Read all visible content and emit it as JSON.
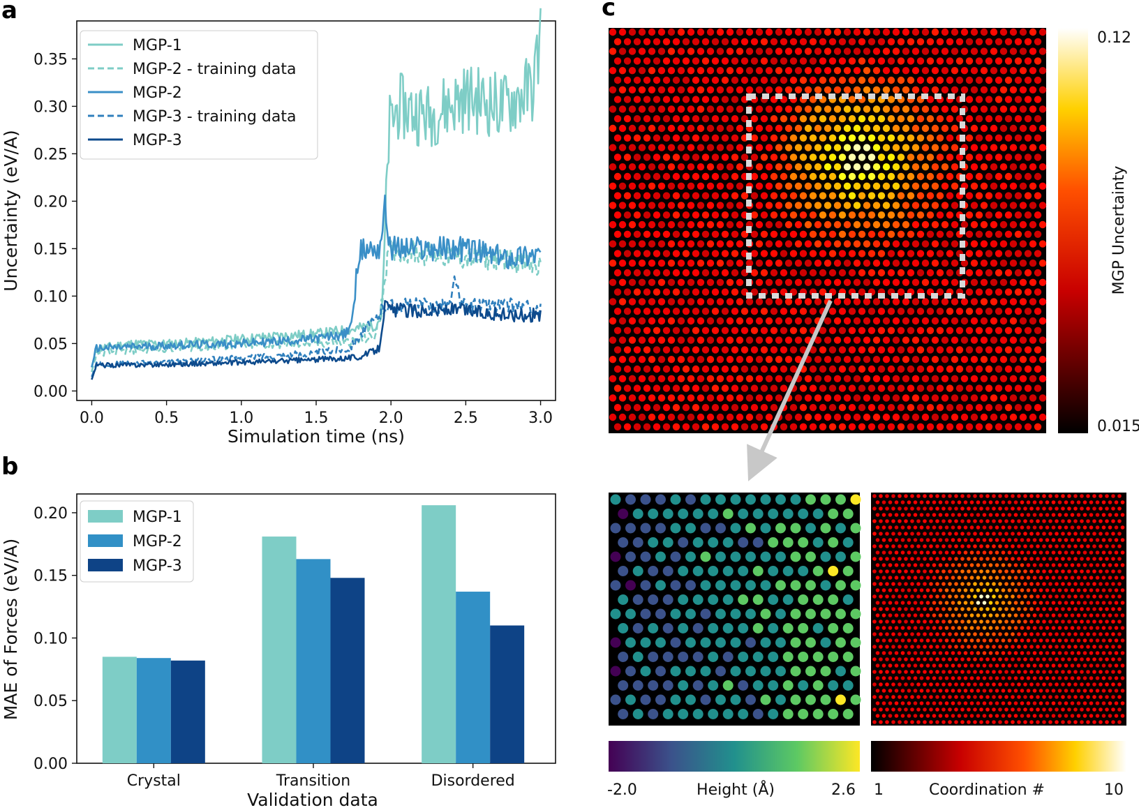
{
  "panels": {
    "a": "a",
    "b": "b",
    "c": "c"
  },
  "chart_data": [
    {
      "type": "line",
      "panel": "a",
      "title": "",
      "xlabel": "Simulation time (ns)",
      "ylabel": "Uncertainty (eV/A)",
      "xlim": [
        -0.1,
        3.1
      ],
      "ylim": [
        -0.01,
        0.39
      ],
      "xticks": [
        0.0,
        0.5,
        1.0,
        1.5,
        2.0,
        2.5,
        3.0
      ],
      "xtick_labels": [
        "0.0",
        "0.5",
        "1.0",
        "1.5",
        "2.0",
        "2.5",
        "3.0"
      ],
      "yticks": [
        0.0,
        0.05,
        0.1,
        0.15,
        0.2,
        0.25,
        0.3,
        0.35
      ],
      "ytick_labels": [
        "0.00",
        "0.05",
        "0.10",
        "0.15",
        "0.20",
        "0.25",
        "0.30",
        "0.35"
      ],
      "legend_position": "top-left",
      "series": [
        {
          "name": "MGP-1",
          "color": "#7ecdc6",
          "dash": "solid",
          "x": [
            0.0,
            0.03,
            0.25,
            0.5,
            0.75,
            1.0,
            1.25,
            1.5,
            1.75,
            1.9,
            1.94,
            1.97,
            1.99,
            2.05,
            2.25,
            2.5,
            2.75,
            2.95,
            3.0
          ],
          "y": [
            0.025,
            0.045,
            0.05,
            0.05,
            0.052,
            0.055,
            0.058,
            0.06,
            0.065,
            0.07,
            0.08,
            0.21,
            0.28,
            0.3,
            0.29,
            0.31,
            0.3,
            0.32,
            0.375
          ]
        },
        {
          "name": "MGP-2 - training data",
          "color": "#7ecdc6",
          "dash": "dashed",
          "x": [
            0.0,
            0.03,
            0.5,
            1.0,
            1.5,
            1.75,
            1.9,
            1.94,
            1.98,
            2.02,
            2.25,
            2.5,
            2.75,
            3.0
          ],
          "y": [
            0.02,
            0.04,
            0.045,
            0.048,
            0.05,
            0.052,
            0.058,
            0.1,
            0.14,
            0.15,
            0.145,
            0.14,
            0.14,
            0.13
          ]
        },
        {
          "name": "MGP-2",
          "color": "#3a8fc7",
          "dash": "solid",
          "x": [
            0.0,
            0.03,
            0.5,
            1.0,
            1.5,
            1.7,
            1.75,
            1.78,
            1.85,
            1.92,
            1.96,
            2.0,
            2.25,
            2.5,
            2.75,
            3.0
          ],
          "y": [
            0.025,
            0.045,
            0.048,
            0.05,
            0.055,
            0.06,
            0.08,
            0.145,
            0.15,
            0.15,
            0.19,
            0.15,
            0.15,
            0.15,
            0.14,
            0.145
          ]
        },
        {
          "name": "MGP-3 - training data",
          "color": "#2f7fbd",
          "dash": "dashed",
          "x": [
            0.0,
            0.03,
            0.5,
            1.0,
            1.5,
            1.72,
            1.8,
            1.9,
            1.96,
            2.0,
            2.25,
            2.4,
            2.43,
            2.46,
            2.6,
            2.85,
            3.0
          ],
          "y": [
            0.015,
            0.028,
            0.03,
            0.035,
            0.04,
            0.045,
            0.06,
            0.075,
            0.09,
            0.09,
            0.09,
            0.09,
            0.125,
            0.09,
            0.09,
            0.09,
            0.085
          ]
        },
        {
          "name": "MGP-3",
          "color": "#0d4a8c",
          "dash": "solid",
          "x": [
            0.0,
            0.03,
            0.5,
            1.0,
            1.5,
            1.8,
            1.92,
            1.94,
            1.96,
            2.0,
            2.25,
            2.5,
            2.75,
            3.0
          ],
          "y": [
            0.012,
            0.027,
            0.028,
            0.03,
            0.033,
            0.036,
            0.045,
            0.07,
            0.09,
            0.085,
            0.085,
            0.085,
            0.08,
            0.08
          ]
        }
      ]
    },
    {
      "type": "bar",
      "panel": "b",
      "title": "",
      "xlabel": "Validation data",
      "ylabel": "MAE of Forces (eV/A)",
      "categories": [
        "Crystal",
        "Transition",
        "Disordered"
      ],
      "ylim": [
        0.0,
        0.215
      ],
      "yticks": [
        0.0,
        0.05,
        0.1,
        0.15,
        0.2
      ],
      "ytick_labels": [
        "0.00",
        "0.05",
        "0.10",
        "0.15",
        "0.20"
      ],
      "legend_position": "top-left",
      "series": [
        {
          "name": "MGP-1",
          "color": "#7ecdc6",
          "values": [
            0.085,
            0.181,
            0.206
          ]
        },
        {
          "name": "MGP-2",
          "color": "#3190c6",
          "values": [
            0.084,
            0.163,
            0.137
          ]
        },
        {
          "name": "MGP-3",
          "color": "#0e4386",
          "values": [
            0.082,
            0.148,
            0.11
          ]
        }
      ]
    },
    {
      "type": "heatmap",
      "panel": "c",
      "colorbar": {
        "label": "MGP Uncertainty",
        "max_label": "0.12",
        "min_label": "0.015",
        "max": 0.12,
        "min": 0.015
      }
    },
    {
      "type": "heatmap",
      "panel": "c-height",
      "colorbar": {
        "label": "Height (Å)",
        "min_label": "-2.0",
        "max_label": "2.6",
        "min": -2.0,
        "max": 2.6
      }
    },
    {
      "type": "heatmap",
      "panel": "c-coordination",
      "colorbar": {
        "label": "Coordination #",
        "min_label": "1",
        "max_label": "10",
        "min": 1,
        "max": 10
      }
    }
  ]
}
